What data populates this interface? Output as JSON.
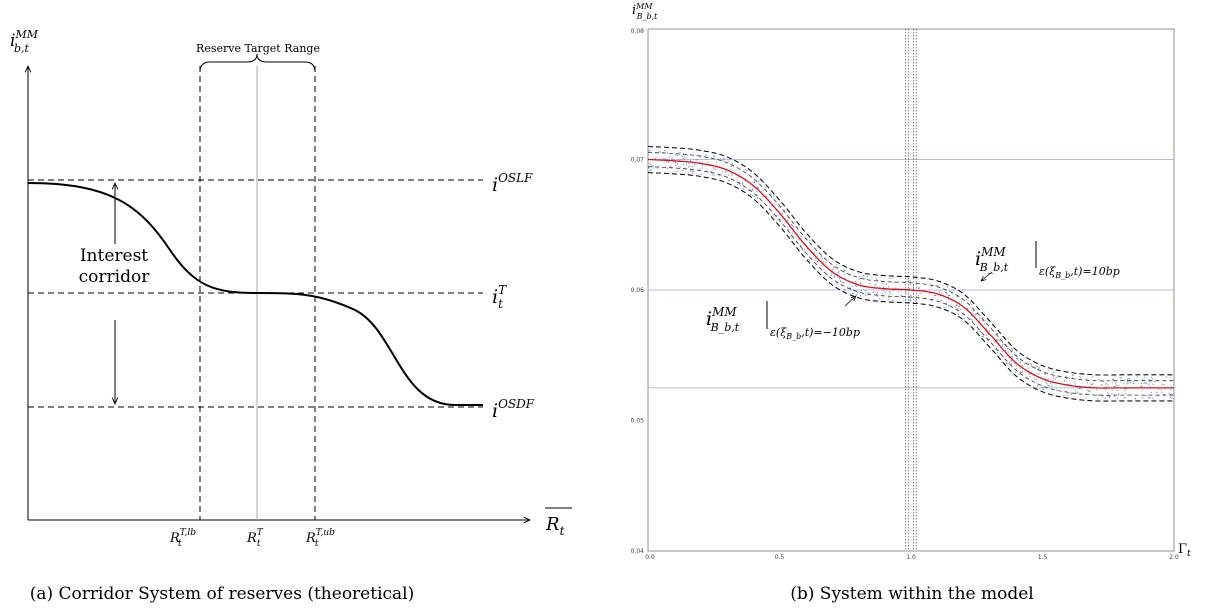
{
  "panel_a": {
    "caption": "(a) Corridor System of reserves (theoretical)",
    "y_axis_label": {
      "base": "i",
      "sub": "b,t",
      "sup": "MM"
    },
    "x_axis_label": {
      "base": "R",
      "sub": "t",
      "overline": true
    },
    "bracket_label": "Reserve Target Range",
    "corridor_label_line1": "Interest",
    "corridor_label_line2": "corridor",
    "rate_levels": [
      {
        "base": "i",
        "sup": "OSLF",
        "sub": ""
      },
      {
        "base": "i",
        "sup": "T",
        "sub": "t"
      },
      {
        "base": "i",
        "sup": "OSDF",
        "sub": ""
      }
    ],
    "x_ticks": [
      {
        "base": "R",
        "sup": "T,lb",
        "sub": "t"
      },
      {
        "base": "R",
        "sup": "T",
        "sub": "t"
      },
      {
        "base": "R",
        "sup": "T,ub",
        "sub": "t"
      }
    ]
  },
  "panel_b": {
    "caption": "(b) System within the model",
    "y_axis_label": {
      "base": "i",
      "sub": "B_b,t",
      "sup": "MM"
    },
    "x_axis_label": {
      "base": "Γ",
      "sub": "t"
    },
    "upper_band_label": {
      "base": "i",
      "sup": "MM",
      "sub": "B_b,t",
      "cond": "ε(ξ",
      "cond_sub": "B_b",
      "cond_tail": ",t)=10bp"
    },
    "lower_band_label": {
      "base": "i",
      "sup": "MM",
      "sub": "B_b,t",
      "cond": "ε(ξ",
      "cond_sub": "B_b",
      "cond_tail": ",t)=−10bp"
    }
  },
  "chart_data": [
    {
      "type": "line",
      "title": "(a) Corridor System of reserves (theoretical)",
      "xlabel": "R_t",
      "ylabel": "i^MM_b,t",
      "x_tick_labels": [
        "R_t^{T,lb}",
        "R_t^T",
        "R_t^{T,ub}"
      ],
      "y_levels": [
        "i^OSLF",
        "i_t^T",
        "i^OSDF"
      ],
      "series": [
        {
          "name": "",
          "description_values": "decreasing S-shaped curve from i^OSLF (left) through flat segment at i_t^T around R_t^T to i^OSDF (right)"
        }
      ],
      "annotations": [
        "Reserve Target Range",
        "Interest corridor"
      ]
    },
    {
      "type": "line",
      "title": "(b) System within the model",
      "xlabel": "Γ_t",
      "ylabel": "i^MM_{B_b,t}",
      "xlim": [
        0.0,
        2.0
      ],
      "ylim": [
        0.04,
        0.08
      ],
      "x_ticks": [
        0.0,
        0.5,
        1.0,
        1.5,
        2.0
      ],
      "x_tick_labels": [
        "0.0",
        "0.5",
        "1.0",
        "1.5",
        "2.0"
      ],
      "y_ticks": [
        0.04,
        0.05,
        0.06,
        0.07,
        0.08
      ],
      "y_tick_labels": [
        "0.04",
        "0.05",
        "0.06",
        "0.07",
        "0.08"
      ],
      "reference_lines_y": [
        0.07,
        0.06,
        0.0525
      ],
      "vertical_band_x": [
        0.98,
        1.02
      ],
      "band_offset": 0.001,
      "series": [
        {
          "name": "",
          "x": [
            0.0,
            0.1,
            0.2,
            0.3,
            0.4,
            0.5,
            0.6,
            0.7,
            0.8,
            0.9,
            1.0,
            1.1,
            1.2,
            1.3,
            1.4,
            1.5,
            1.6,
            1.7,
            1.8,
            1.9,
            2.0
          ],
          "y": [
            0.07,
            0.0699,
            0.0697,
            0.0692,
            0.068,
            0.0659,
            0.0634,
            0.0614,
            0.0604,
            0.0601,
            0.06,
            0.0597,
            0.0587,
            0.0566,
            0.0544,
            0.0532,
            0.0527,
            0.0525,
            0.0525,
            0.0525,
            0.0525
          ]
        }
      ],
      "annotations": [
        "i^MM_{B_b,t}|ε(ξ_{B_b},t)=10bp",
        "i^MM_{B_b,t}|ε(ξ_{B_b},t)=−10bp"
      ]
    }
  ]
}
